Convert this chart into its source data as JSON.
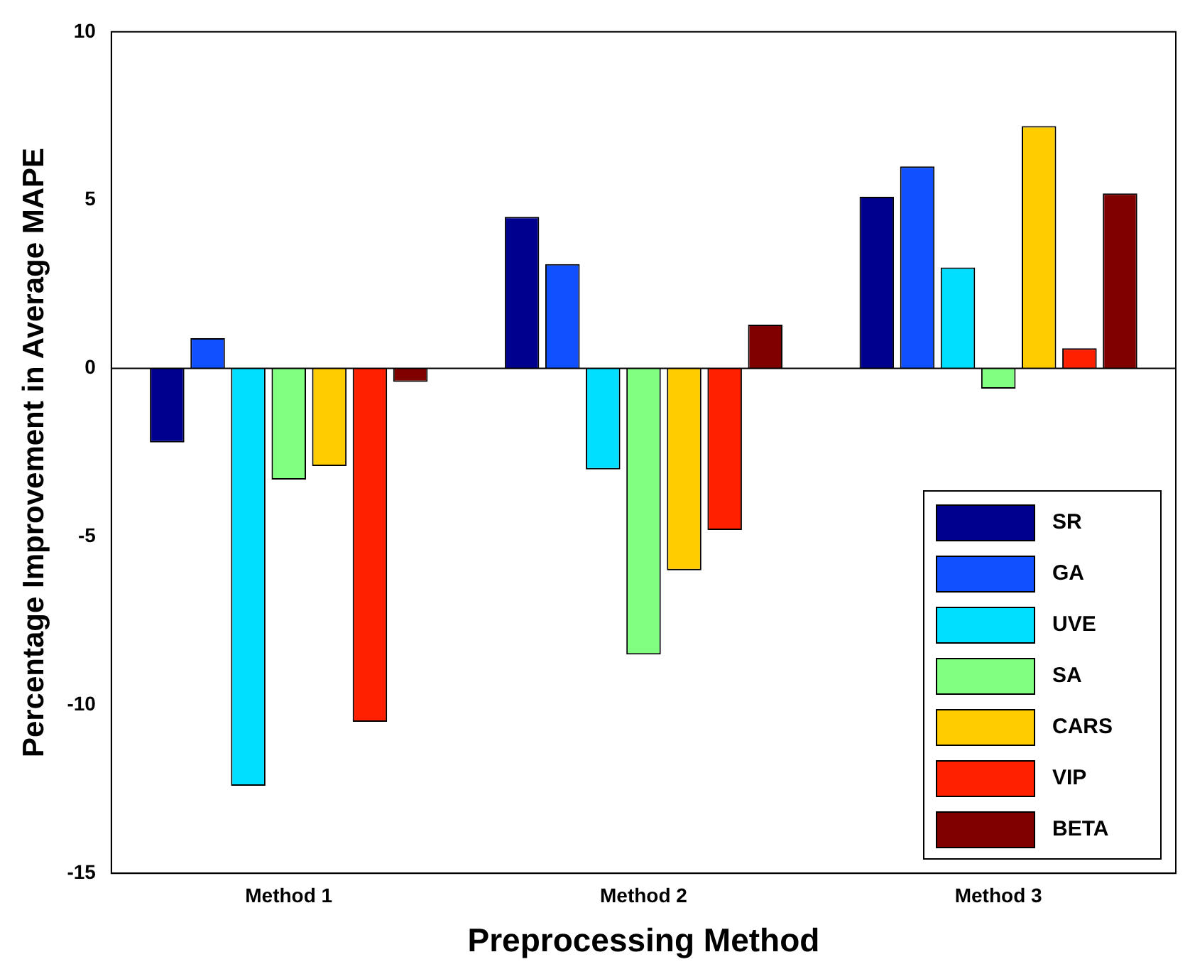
{
  "chart_data": {
    "type": "bar",
    "xlabel": "Preprocessing Method",
    "ylabel": "Percentage Improvement in Average MAPE",
    "categories": [
      "Method 1",
      "Method 2",
      "Method 3"
    ],
    "series": [
      {
        "name": "SR",
        "color": "#00008f",
        "values": [
          -2.2,
          4.5,
          5.1
        ]
      },
      {
        "name": "GA",
        "color": "#1050ff",
        "values": [
          0.9,
          3.1,
          6.0
        ]
      },
      {
        "name": "UVE",
        "color": "#00dfff",
        "values": [
          -12.4,
          -3.0,
          3.0
        ]
      },
      {
        "name": "SA",
        "color": "#80ff80",
        "values": [
          -3.3,
          -8.5,
          -0.6
        ]
      },
      {
        "name": "CARS",
        "color": "#ffcc00",
        "values": [
          -2.9,
          -6.0,
          7.2
        ]
      },
      {
        "name": "VIP",
        "color": "#ff2000",
        "values": [
          -10.5,
          -4.8,
          0.6
        ]
      },
      {
        "name": "BETA",
        "color": "#800000",
        "values": [
          -0.4,
          1.3,
          5.2
        ]
      }
    ],
    "ylim": [
      -15,
      10
    ],
    "yticks": [
      -15,
      -10,
      -5,
      0,
      5,
      10
    ],
    "grid": false,
    "legend": "bottom right",
    "ref_lines": [
      {
        "axis": "y",
        "value": 0,
        "color": "#000000"
      }
    ]
  }
}
